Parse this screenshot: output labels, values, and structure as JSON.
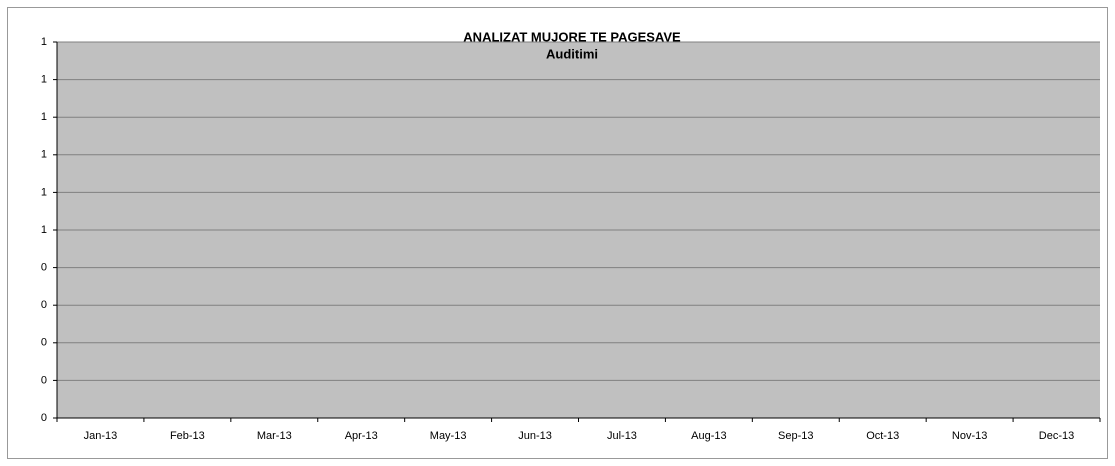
{
  "chart_data": {
    "type": "line",
    "title": "ANALIZAT MUJORE TE PAGESAVE",
    "subtitle": "Auditimi",
    "categories": [
      "Jan-13",
      "Feb-13",
      "Mar-13",
      "Apr-13",
      "May-13",
      "Jun-13",
      "Jul-13",
      "Aug-13",
      "Sep-13",
      "Oct-13",
      "Nov-13",
      "Dec-13"
    ],
    "values": [
      null,
      null,
      null,
      null,
      null,
      null,
      null,
      null,
      null,
      null,
      null,
      null
    ],
    "color": "#000080",
    "ylim": [
      0,
      1
    ],
    "yticks": [
      0,
      {
        "value": 0.1,
        "label": "0"
      },
      {
        "value": 0.2,
        "label": "0"
      },
      {
        "value": 0.3,
        "label": "0"
      },
      {
        "value": 0.4,
        "label": "0"
      },
      {
        "value": 0.5,
        "label": "1"
      },
      {
        "value": 0.6,
        "label": "1"
      },
      {
        "value": 0.7,
        "label": "1"
      },
      {
        "value": 0.8,
        "label": "1"
      },
      {
        "value": 0.9,
        "label": "1"
      },
      1
    ],
    "grid": true
  }
}
